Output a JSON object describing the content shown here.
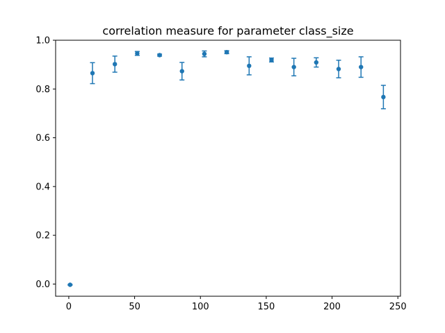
{
  "chart_data": {
    "type": "scatter",
    "title": "correlation measure for parameter class_size",
    "xlabel": "",
    "ylabel": "",
    "xlim": [
      -10,
      252
    ],
    "ylim": [
      -0.05,
      1.0
    ],
    "xticks": [
      0,
      50,
      100,
      150,
      200,
      250
    ],
    "yticks": [
      0.0,
      0.2,
      0.4,
      0.6,
      0.8,
      1.0
    ],
    "xtick_labels": [
      "0",
      "50",
      "100",
      "150",
      "200",
      "250"
    ],
    "ytick_labels": [
      "0.0",
      "0.2",
      "0.4",
      "0.6",
      "0.8",
      "1.0"
    ],
    "grid": false,
    "color": "#1f77b4",
    "series": [
      {
        "points": [
          {
            "x": 1,
            "y": -0.003,
            "err": 0.002
          },
          {
            "x": 18,
            "y": 0.865,
            "err": 0.043
          },
          {
            "x": 35,
            "y": 0.902,
            "err": 0.033
          },
          {
            "x": 52,
            "y": 0.946,
            "err": 0.008
          },
          {
            "x": 69,
            "y": 0.939,
            "err": 0.004
          },
          {
            "x": 86,
            "y": 0.873,
            "err": 0.036
          },
          {
            "x": 103,
            "y": 0.944,
            "err": 0.012
          },
          {
            "x": 120,
            "y": 0.951,
            "err": 0.006
          },
          {
            "x": 137,
            "y": 0.895,
            "err": 0.037
          },
          {
            "x": 154,
            "y": 0.919,
            "err": 0.008
          },
          {
            "x": 171,
            "y": 0.89,
            "err": 0.036
          },
          {
            "x": 188,
            "y": 0.909,
            "err": 0.019
          },
          {
            "x": 205,
            "y": 0.882,
            "err": 0.036
          },
          {
            "x": 222,
            "y": 0.89,
            "err": 0.042
          },
          {
            "x": 239,
            "y": 0.767,
            "err": 0.048
          }
        ]
      }
    ]
  }
}
